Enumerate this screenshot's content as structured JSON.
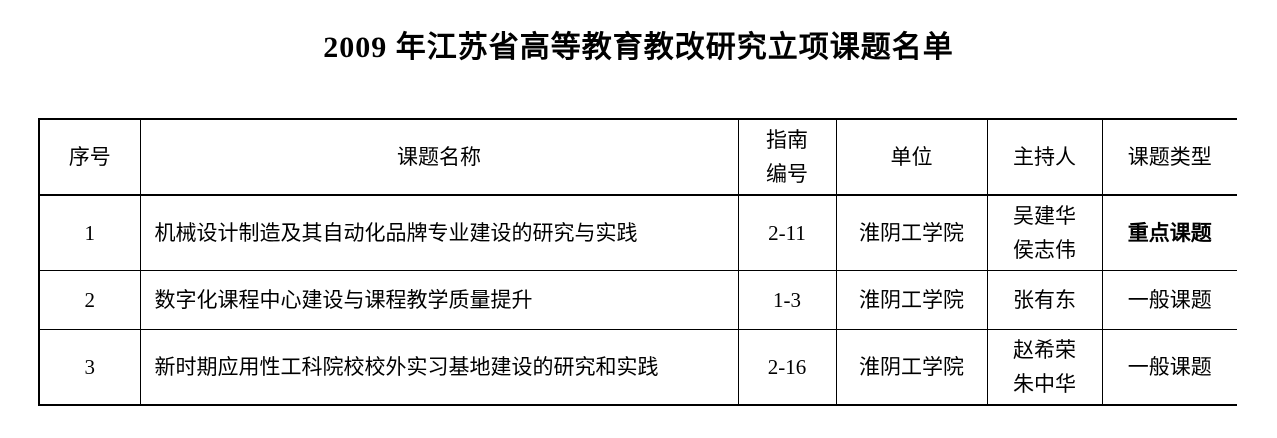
{
  "title": "2009 年江苏省高等教育教改研究立项课题名单",
  "table": {
    "headers": [
      "序号",
      "课题名称",
      "指南编号",
      "单位",
      "主持人",
      "课题类型"
    ],
    "guide_header_lines": [
      "指南",
      "编号"
    ],
    "rows": [
      {
        "no": "1",
        "name": "机械设计制造及其自动化品牌专业建设的研究与实践",
        "guide": "2-11",
        "unit": "淮阴工学院",
        "leaders": [
          "吴建华",
          "侯志伟"
        ],
        "type": "重点课题",
        "type_bold": true
      },
      {
        "no": "2",
        "name": "数字化课程中心建设与课程教学质量提升",
        "guide": "1-3",
        "unit": "淮阴工学院",
        "leaders": [
          "张有东"
        ],
        "type": "一般课题",
        "type_bold": false
      },
      {
        "no": "3",
        "name": "新时期应用性工科院校校外实习基地建设的研究和实践",
        "guide": "2-16",
        "unit": "淮阴工学院",
        "leaders": [
          "赵希荣",
          "朱中华"
        ],
        "type": "一般课题",
        "type_bold": false
      }
    ]
  }
}
